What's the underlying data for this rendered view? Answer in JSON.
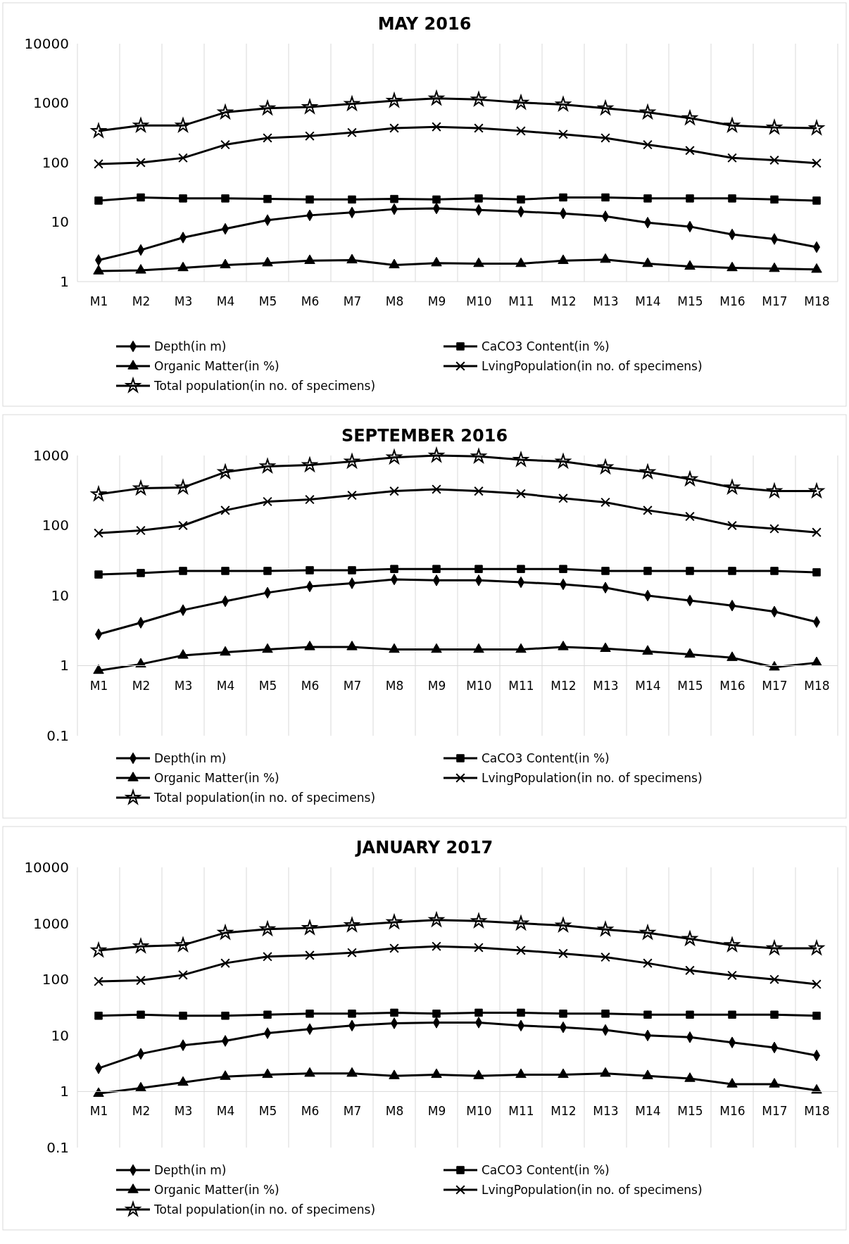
{
  "chart_data": [
    {
      "type": "line",
      "title": "MAY 2016",
      "categories": [
        "M1",
        "M2",
        "M3",
        "M4",
        "M5",
        "M6",
        "M7",
        "M8",
        "M9",
        "M10",
        "M11",
        "M12",
        "M13",
        "M14",
        "M15",
        "M16",
        "M17",
        "M18"
      ],
      "log": true,
      "ylim": [
        1,
        10000
      ],
      "yticks": [
        1,
        10,
        100,
        1000,
        10000
      ],
      "grid": "x",
      "legend": "bottom",
      "series": [
        {
          "name": "Depth(in m)",
          "color": "#000000",
          "marker": "diamond",
          "values": [
            2.3,
            3.4,
            5.5,
            7.7,
            10.8,
            13,
            14.5,
            16.5,
            17,
            16,
            15,
            14,
            12.5,
            9.8,
            8.4,
            6.2,
            5.2,
            3.8
          ]
        },
        {
          "name": "CaCO3 Content(in %)",
          "color": "#000000",
          "marker": "square",
          "values": [
            23,
            26,
            25,
            25,
            24.5,
            24,
            24,
            24.5,
            24,
            25,
            24,
            26,
            26,
            25,
            25,
            25,
            24,
            23
          ]
        },
        {
          "name": "Organic Matter(in %)",
          "color": "#000000",
          "marker": "triangle",
          "values": [
            1.5,
            1.55,
            1.7,
            1.9,
            2.05,
            2.25,
            2.3,
            1.9,
            2.05,
            2,
            2,
            2.25,
            2.35,
            2,
            1.8,
            1.7,
            1.65,
            1.6
          ]
        },
        {
          "name": "LvingPopulation(in  no. of specimens)",
          "color": "#000000",
          "marker": "cross",
          "values": [
            95,
            100,
            120,
            200,
            260,
            280,
            320,
            380,
            400,
            380,
            340,
            300,
            260,
            200,
            160,
            120,
            110,
            98
          ]
        },
        {
          "name": "Total population(in  no. of specimens)",
          "color": "#000000",
          "marker": "star",
          "values": [
            340,
            420,
            420,
            700,
            820,
            860,
            970,
            1100,
            1200,
            1150,
            1020,
            950,
            820,
            700,
            560,
            420,
            390,
            380
          ]
        }
      ]
    },
    {
      "type": "line",
      "title": "SEPTEMBER 2016",
      "categories": [
        "M1",
        "M2",
        "M3",
        "M4",
        "M5",
        "M6",
        "M7",
        "M8",
        "M9",
        "M10",
        "M11",
        "M12",
        "M13",
        "M14",
        "M15",
        "M16",
        "M17",
        "M18"
      ],
      "log": true,
      "ylim": [
        0.1,
        1000
      ],
      "yticks": [
        0.1,
        1,
        10,
        100,
        1000
      ],
      "grid": "x",
      "legend": "bottom",
      "series": [
        {
          "name": "Depth(in m)",
          "color": "#000000",
          "marker": "diamond",
          "values": [
            2.8,
            4.1,
            6.2,
            8.3,
            11,
            13.5,
            15,
            17,
            16.5,
            16.5,
            15.5,
            14.5,
            13,
            10,
            8.5,
            7.2,
            5.9,
            4.2
          ]
        },
        {
          "name": "CaCO3 Content(in %)",
          "color": "#000000",
          "marker": "square",
          "values": [
            20,
            21,
            22.5,
            22.5,
            22.5,
            23,
            23,
            24,
            24,
            24,
            24,
            24,
            22.5,
            22.5,
            22.5,
            22.5,
            22.5,
            21.5
          ]
        },
        {
          "name": "Organic Matter(in %)",
          "color": "#000000",
          "marker": "triangle",
          "values": [
            0.85,
            1.05,
            1.4,
            1.55,
            1.7,
            1.85,
            1.85,
            1.7,
            1.7,
            1.7,
            1.7,
            1.85,
            1.75,
            1.6,
            1.45,
            1.3,
            0.95,
            1.1
          ]
        },
        {
          "name": "LvingPopulation(in  no. of specimens)",
          "color": "#000000",
          "marker": "cross",
          "values": [
            78,
            85,
            100,
            165,
            220,
            235,
            270,
            310,
            330,
            310,
            285,
            245,
            215,
            165,
            135,
            100,
            90,
            80
          ]
        },
        {
          "name": "Total population(in  no. of specimens)",
          "color": "#000000",
          "marker": "star",
          "values": [
            280,
            340,
            350,
            580,
            700,
            730,
            820,
            940,
            1000,
            970,
            870,
            820,
            680,
            580,
            460,
            350,
            310,
            310
          ]
        }
      ]
    },
    {
      "type": "line",
      "title": "JANUARY 2017",
      "categories": [
        "M1",
        "M2",
        "M3",
        "M4",
        "M5",
        "M6",
        "M7",
        "M8",
        "M9",
        "M10",
        "M11",
        "M12",
        "M13",
        "M14",
        "M15",
        "M16",
        "M17",
        "M18"
      ],
      "log": true,
      "ylim": [
        0.1,
        10000
      ],
      "yticks": [
        0.1,
        1,
        10,
        100,
        1000,
        10000
      ],
      "grid": "x",
      "legend": "bottom",
      "series": [
        {
          "name": "Depth(in m)",
          "color": "#000000",
          "marker": "diamond",
          "values": [
            2.6,
            4.7,
            6.7,
            8,
            11,
            13,
            15,
            16.5,
            17,
            17,
            15,
            14,
            12.5,
            10,
            9.3,
            7.5,
            6.1,
            4.4
          ]
        },
        {
          "name": "CaCO3 Content(in %)",
          "color": "#000000",
          "marker": "square",
          "values": [
            22.5,
            23.5,
            22.5,
            22.5,
            23.5,
            24.5,
            24.5,
            25.5,
            24.5,
            25.5,
            25.5,
            24.5,
            24.5,
            23.5,
            23.5,
            23.5,
            23.5,
            22.5
          ]
        },
        {
          "name": "Organic Matter(in %)",
          "color": "#000000",
          "marker": "triangle",
          "values": [
            0.92,
            1.15,
            1.45,
            1.85,
            2,
            2.1,
            2.1,
            1.9,
            2,
            1.9,
            2,
            2,
            2.1,
            1.9,
            1.7,
            1.35,
            1.35,
            1.05
          ]
        },
        {
          "name": "LvingPopulation(in  no. of specimens)",
          "color": "#000000",
          "marker": "cross",
          "values": [
            92,
            96,
            120,
            195,
            255,
            270,
            300,
            360,
            390,
            370,
            330,
            290,
            250,
            195,
            145,
            118,
            100,
            82
          ]
        },
        {
          "name": "Total population(in  no. of specimens)",
          "color": "#000000",
          "marker": "star",
          "values": [
            330,
            390,
            410,
            680,
            790,
            830,
            930,
            1050,
            1150,
            1100,
            1000,
            920,
            780,
            680,
            530,
            410,
            360,
            360
          ]
        }
      ]
    }
  ]
}
